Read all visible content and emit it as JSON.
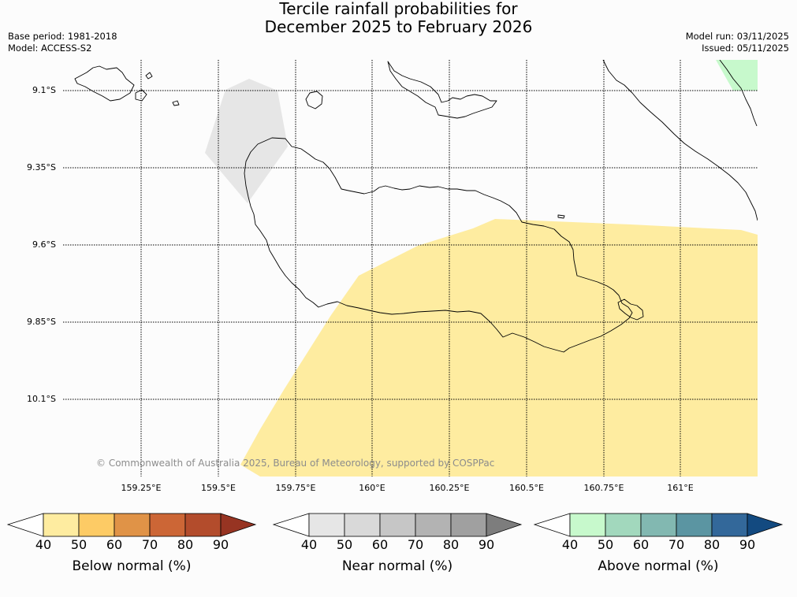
{
  "title": {
    "line1": "Tercile rainfall probabilities for",
    "line2": "December 2025 to February 2026"
  },
  "meta": {
    "base_period": "Base period: 1981-2018",
    "model": "Model: ACCESS-S2",
    "model_run": "Model run: 03/11/2025",
    "issued": "Issued: 05/11/2025"
  },
  "map": {
    "lat_labels": [
      "9.1°S",
      "9.35°S",
      "9.6°S",
      "9.85°S",
      "10.1°S"
    ],
    "lon_labels": [
      "159.25°E",
      "159.5°E",
      "159.75°E",
      "160°E",
      "160.25°E",
      "160.5°E",
      "160.75°E",
      "161°E"
    ],
    "copyright": "© Commonwealth of Australia 2025, Bureau of Meteorology, supported by COSPPac",
    "regions": [
      {
        "category": "below-normal",
        "probability_bin": "40-50",
        "color": "#feeca0"
      },
      {
        "category": "near-normal",
        "probability_bin": "40-50",
        "color": "#e6e6e6"
      },
      {
        "category": "above-normal",
        "probability_bin": "40-50",
        "color": "#c7f9cc"
      }
    ]
  },
  "colorbars": [
    {
      "label": "Below normal (%)",
      "ticks": [
        "40",
        "50",
        "60",
        "70",
        "80",
        "90"
      ],
      "colors": [
        "#feeca0",
        "#fdcb65",
        "#e09347",
        "#cc6636",
        "#b34c2c",
        "#973422"
      ]
    },
    {
      "label": "Near normal (%)",
      "ticks": [
        "40",
        "50",
        "60",
        "70",
        "80",
        "90"
      ],
      "colors": [
        "#e6e6e6",
        "#d9d9d9",
        "#c6c6c6",
        "#b3b3b3",
        "#a0a0a0",
        "#7d7d7d"
      ]
    },
    {
      "label": "Above normal (%)",
      "ticks": [
        "40",
        "50",
        "60",
        "70",
        "80",
        "90"
      ],
      "colors": [
        "#c7f9cc",
        "#a2d8bd",
        "#82b8b1",
        "#5b95a2",
        "#33689a",
        "#134a80"
      ]
    }
  ]
}
